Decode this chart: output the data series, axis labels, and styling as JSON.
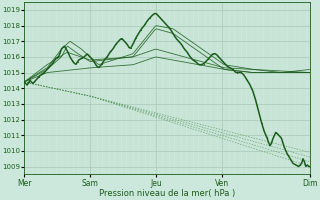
{
  "xlabel": "Pression niveau de la mer( hPa )",
  "ylim": [
    1008.5,
    1019.5
  ],
  "yticks": [
    1009,
    1010,
    1011,
    1012,
    1013,
    1014,
    1015,
    1016,
    1017,
    1018,
    1019
  ],
  "xtick_labels": [
    "Mer",
    "Sam",
    "Jeu",
    "Ven",
    "Dim"
  ],
  "xtick_positions": [
    0,
    0.23,
    0.46,
    0.69,
    1.0
  ],
  "bg_color": "#cce8dc",
  "grid_color_major": "#a8c8b8",
  "grid_color_minor": "#b8d8c8",
  "line_color": "#1a5c1a",
  "dashed_color": "#4a8a4a",
  "total_points": 200
}
